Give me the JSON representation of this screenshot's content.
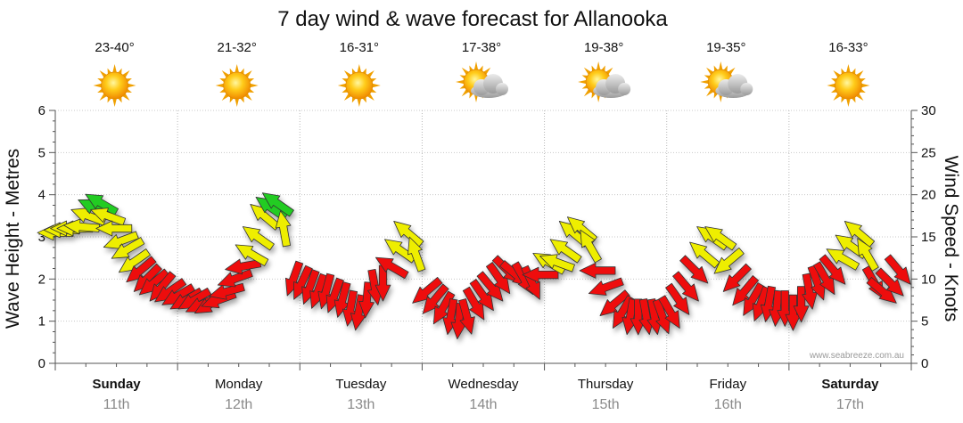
{
  "chart_data": {
    "type": "line",
    "title": "7 day wind & wave forecast for Allanooka",
    "ylabel": "Wave Height - Metres",
    "y2label": "Wind Speed - Knots",
    "ylim": [
      0,
      6
    ],
    "y2lim": [
      0,
      30
    ],
    "yticks": [
      "0",
      "1",
      "2",
      "3",
      "4",
      "5",
      "6"
    ],
    "y2ticks": [
      "0",
      "5",
      "10",
      "15",
      "20",
      "25",
      "30"
    ],
    "grid": true,
    "credit": "www.seabreeze.com.au",
    "days": [
      {
        "name": "Sunday",
        "date": "11th",
        "temp": "23-40°",
        "weather": "sunny",
        "bold": true
      },
      {
        "name": "Monday",
        "date": "12th",
        "temp": "21-32°",
        "weather": "sunny",
        "bold": false
      },
      {
        "name": "Tuesday",
        "date": "13th",
        "temp": "16-31°",
        "weather": "sunny",
        "bold": false
      },
      {
        "name": "Wednesday",
        "date": "14th",
        "temp": "17-38°",
        "weather": "partly-cloudy",
        "bold": false
      },
      {
        "name": "Thursday",
        "date": "15th",
        "temp": "19-38°",
        "weather": "partly-cloudy",
        "bold": false
      },
      {
        "name": "Friday",
        "date": "16th",
        "temp": "19-35°",
        "weather": "partly-cloudy",
        "bold": false
      },
      {
        "name": "Saturday",
        "date": "17th",
        "temp": "16-33°",
        "weather": "sunny",
        "bold": true
      }
    ],
    "colors": {
      "strong": "#22cc22",
      "moderate": "#eeee00",
      "light": "#ee1111",
      "outline": "#333333"
    },
    "wind_series": [
      {
        "t": 0.0,
        "knots": 15.5,
        "dir": 180
      },
      {
        "t": 0.08,
        "knots": 15.8,
        "dir": 180
      },
      {
        "t": 0.16,
        "knots": 16.0,
        "dir": 180
      },
      {
        "t": 0.24,
        "knots": 16.0,
        "dir": 180
      },
      {
        "t": 0.32,
        "knots": 16.2,
        "dir": 185
      },
      {
        "t": 0.4,
        "knots": 17.5,
        "dir": 200
      },
      {
        "t": 0.48,
        "knots": 18.5,
        "dir": 205
      },
      {
        "t": 0.56,
        "knots": 19.0,
        "dir": 210
      },
      {
        "t": 0.64,
        "knots": 17.5,
        "dir": 200
      },
      {
        "t": 0.72,
        "knots": 16.0,
        "dir": 180
      },
      {
        "t": 0.8,
        "knots": 14.5,
        "dir": 160
      },
      {
        "t": 0.88,
        "knots": 13.5,
        "dir": 150
      },
      {
        "t": 0.96,
        "knots": 12.0,
        "dir": 145
      },
      {
        "t": 1.04,
        "knots": 11.0,
        "dir": 140
      },
      {
        "t": 1.12,
        "knots": 10.0,
        "dir": 135
      },
      {
        "t": 1.2,
        "knots": 9.5,
        "dir": 140
      },
      {
        "t": 1.3,
        "knots": 9.0,
        "dir": 130
      },
      {
        "t": 1.4,
        "knots": 8.5,
        "dir": 145
      },
      {
        "t": 1.5,
        "knots": 8.0,
        "dir": 150
      },
      {
        "t": 1.6,
        "knots": 7.5,
        "dir": 150
      },
      {
        "t": 1.7,
        "knots": 7.5,
        "dir": 150
      },
      {
        "t": 1.8,
        "knots": 7.0,
        "dir": 155
      },
      {
        "t": 1.9,
        "knots": 7.0,
        "dir": 150
      },
      {
        "t": 2.0,
        "knots": 7.5,
        "dir": 160
      },
      {
        "t": 2.1,
        "knots": 8.5,
        "dir": 165
      },
      {
        "t": 2.2,
        "knots": 10.0,
        "dir": 160
      },
      {
        "t": 2.3,
        "knots": 11.5,
        "dir": 170
      },
      {
        "t": 2.4,
        "knots": 13.0,
        "dir": 210
      },
      {
        "t": 2.48,
        "knots": 15.0,
        "dir": 215
      },
      {
        "t": 2.56,
        "knots": 17.5,
        "dir": 220
      },
      {
        "t": 2.64,
        "knots": 18.5,
        "dir": 215
      },
      {
        "t": 2.72,
        "knots": 19.0,
        "dir": 215
      },
      {
        "t": 2.8,
        "knots": 16.0,
        "dir": 260
      },
      {
        "t": 2.92,
        "knots": 10.0,
        "dir": 110
      },
      {
        "t": 3.02,
        "knots": 9.5,
        "dir": 115
      },
      {
        "t": 3.12,
        "knots": 9.0,
        "dir": 110
      },
      {
        "t": 3.22,
        "knots": 8.5,
        "dir": 110
      },
      {
        "t": 3.32,
        "knots": 8.5,
        "dir": 105
      },
      {
        "t": 3.42,
        "knots": 8.0,
        "dir": 110
      },
      {
        "t": 3.52,
        "knots": 7.5,
        "dir": 105
      },
      {
        "t": 3.62,
        "knots": 6.5,
        "dir": 100
      },
      {
        "t": 3.72,
        "knots": 6.0,
        "dir": 100
      },
      {
        "t": 3.82,
        "knots": 7.5,
        "dir": 95
      },
      {
        "t": 3.92,
        "knots": 9.0,
        "dir": 80
      },
      {
        "t": 4.02,
        "knots": 9.5,
        "dir": 90
      },
      {
        "t": 4.12,
        "knots": 11.5,
        "dir": 210
      },
      {
        "t": 4.22,
        "knots": 13.5,
        "dir": 215
      },
      {
        "t": 4.32,
        "knots": 15.5,
        "dir": 220
      },
      {
        "t": 4.42,
        "knots": 13.0,
        "dir": 250
      },
      {
        "t": 4.55,
        "knots": 8.5,
        "dir": 140
      },
      {
        "t": 4.65,
        "knots": 7.5,
        "dir": 130
      },
      {
        "t": 4.75,
        "knots": 6.5,
        "dir": 120
      },
      {
        "t": 4.85,
        "knots": 5.5,
        "dir": 100
      },
      {
        "t": 4.95,
        "knots": 5.0,
        "dir": 95
      },
      {
        "t": 5.05,
        "knots": 5.5,
        "dir": 75
      },
      {
        "t": 5.15,
        "knots": 7.0,
        "dir": 60
      },
      {
        "t": 5.25,
        "knots": 8.0,
        "dir": 55
      },
      {
        "t": 5.35,
        "knots": 9.0,
        "dir": 50
      },
      {
        "t": 5.45,
        "knots": 10.0,
        "dir": 55
      },
      {
        "t": 5.55,
        "knots": 11.0,
        "dir": 45
      },
      {
        "t": 5.65,
        "knots": 10.5,
        "dir": 40
      },
      {
        "t": 5.75,
        "knots": 10.0,
        "dir": 60
      },
      {
        "t": 5.85,
        "knots": 9.5,
        "dir": 65
      },
      {
        "t": 5.95,
        "knots": 10.5,
        "dir": 180
      },
      {
        "t": 6.05,
        "knots": 12.0,
        "dir": 210
      },
      {
        "t": 6.15,
        "knots": 12.0,
        "dir": 200
      },
      {
        "t": 6.25,
        "knots": 13.5,
        "dir": 215
      },
      {
        "t": 6.35,
        "knots": 15.5,
        "dir": 220
      },
      {
        "t": 6.45,
        "knots": 16.0,
        "dir": 220
      },
      {
        "t": 6.55,
        "knots": 14.0,
        "dir": 240
      },
      {
        "t": 6.65,
        "knots": 11.0,
        "dir": 180
      },
      {
        "t": 6.75,
        "knots": 9.0,
        "dir": 160
      },
      {
        "t": 6.85,
        "knots": 7.0,
        "dir": 140
      },
      {
        "t": 6.95,
        "knots": 6.0,
        "dir": 120
      },
      {
        "t": 7.05,
        "knots": 5.5,
        "dir": 100
      },
      {
        "t": 7.15,
        "knots": 5.5,
        "dir": 90
      },
      {
        "t": 7.25,
        "knots": 5.5,
        "dir": 80
      },
      {
        "t": 7.35,
        "knots": 5.5,
        "dir": 80
      },
      {
        "t": 7.45,
        "knots": 5.5,
        "dir": 70
      },
      {
        "t": 7.55,
        "knots": 6.0,
        "dir": 60
      },
      {
        "t": 7.65,
        "knots": 7.5,
        "dir": 55
      },
      {
        "t": 7.75,
        "knots": 9.0,
        "dir": 50
      },
      {
        "t": 7.85,
        "knots": 11.0,
        "dir": 45
      },
      {
        "t": 7.95,
        "knots": 13.0,
        "dir": 220
      },
      {
        "t": 8.05,
        "knots": 15.0,
        "dir": 215
      },
      {
        "t": 8.15,
        "knots": 15.0,
        "dir": 215
      },
      {
        "t": 8.25,
        "knots": 12.0,
        "dir": 140
      },
      {
        "t": 8.35,
        "knots": 10.0,
        "dir": 135
      },
      {
        "t": 8.45,
        "knots": 8.5,
        "dir": 130
      },
      {
        "t": 8.55,
        "knots": 7.5,
        "dir": 120
      },
      {
        "t": 8.65,
        "knots": 7.0,
        "dir": 110
      },
      {
        "t": 8.75,
        "knots": 7.0,
        "dir": 100
      },
      {
        "t": 8.85,
        "knots": 6.5,
        "dir": 95
      },
      {
        "t": 8.95,
        "knots": 6.5,
        "dir": 90
      },
      {
        "t": 9.05,
        "knots": 6.0,
        "dir": 90
      },
      {
        "t": 9.15,
        "knots": 7.0,
        "dir": 90
      },
      {
        "t": 9.25,
        "knots": 8.5,
        "dir": 80
      },
      {
        "t": 9.35,
        "knots": 9.5,
        "dir": 70
      },
      {
        "t": 9.45,
        "knots": 10.0,
        "dir": 60
      },
      {
        "t": 9.55,
        "knots": 11.0,
        "dir": 50
      },
      {
        "t": 9.65,
        "knots": 12.5,
        "dir": 210
      },
      {
        "t": 9.75,
        "knots": 14.0,
        "dir": 215
      },
      {
        "t": 9.85,
        "knots": 15.5,
        "dir": 220
      },
      {
        "t": 9.95,
        "knots": 13.0,
        "dir": 240
      },
      {
        "t": 10.05,
        "knots": 9.5,
        "dir": 60
      },
      {
        "t": 10.15,
        "knots": 8.5,
        "dir": 40
      },
      {
        "t": 10.25,
        "knots": 9.5,
        "dir": 45
      },
      {
        "t": 10.35,
        "knots": 11.0,
        "dir": 50
      }
    ]
  }
}
